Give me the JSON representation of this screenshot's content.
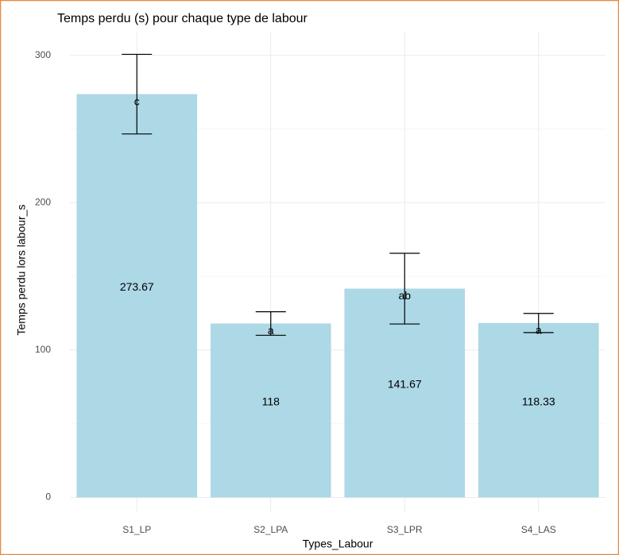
{
  "chart_data": {
    "type": "bar",
    "title": "Temps perdu (s) pour chaque type de labour",
    "x_label": "Types_Labour",
    "y_label": "Temps perdu lors labour_s",
    "categories": [
      "S1_LP",
      "S2_LPA",
      "S3_LPR",
      "S4_LAS"
    ],
    "values": [
      273.67,
      118,
      141.67,
      118.33
    ],
    "errors": [
      27,
      8,
      24,
      6.5
    ],
    "letters": [
      "c",
      "a",
      "ab",
      "a"
    ],
    "color": "#add8e6",
    "ylim": [
      -10,
      316
    ],
    "yticks": [
      0,
      100,
      200,
      300
    ],
    "yminor": [
      50,
      150,
      250
    ],
    "grid": true
  }
}
